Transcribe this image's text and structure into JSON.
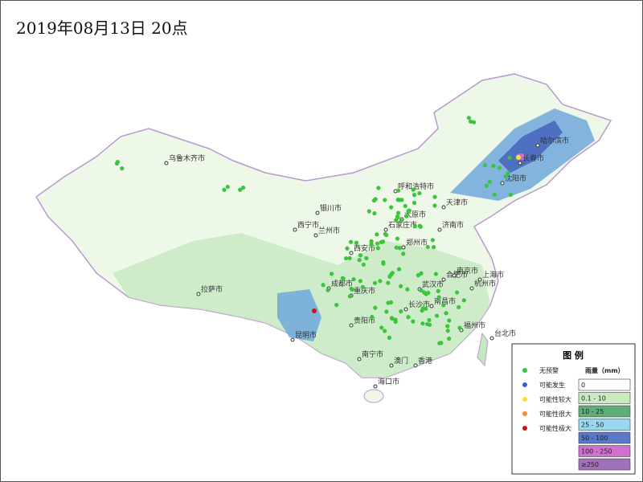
{
  "title": "2019年08月13日  20点",
  "cities": [
    "乌鲁木齐市",
    "哈尔滨市",
    "长春市",
    "沈阳市",
    "呼和浩特市",
    "银川市",
    "太原市",
    "石家庄市",
    "天津市",
    "济南市",
    "西宁市",
    "兰州市",
    "西安市",
    "郑州市",
    "合肥市",
    "南京市",
    "上海市",
    "杭州市",
    "武汉市",
    "成都市",
    "重庆市",
    "长沙市",
    "南昌市",
    "贵阳市",
    "昆明市",
    "福州市",
    "台北市",
    "南宁市",
    "澳门",
    "香港",
    "海口市",
    "拉萨市"
  ],
  "legend": {
    "title": "图 例",
    "points": [
      "无预警",
      "可能发生",
      "可能性较大",
      "可能性很大",
      "可能性极大"
    ],
    "rain_heading": "雨量（mm）",
    "rain": [
      "0",
      "0.1 - 10",
      "10 - 25",
      "25 - 50",
      "50 - 100",
      "100 - 250",
      "≥250"
    ]
  }
}
